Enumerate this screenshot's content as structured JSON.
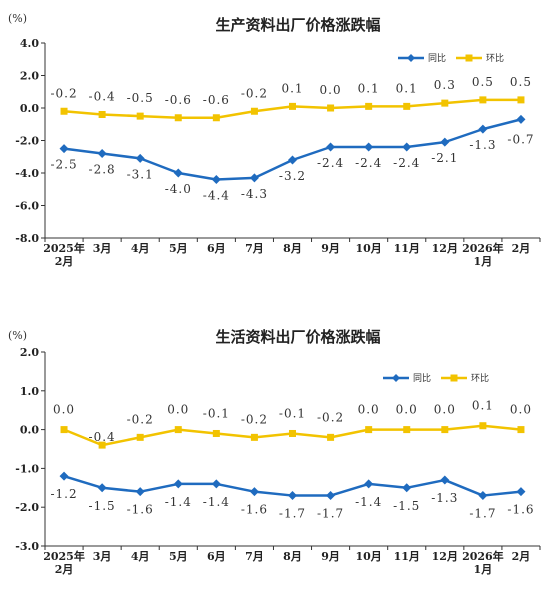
{
  "colors": {
    "yoy": "#1f6bbf",
    "mom": "#f2c300",
    "axis": "#333333"
  },
  "chart_data": [
    {
      "type": "line",
      "title": "生产资料出厂价格涨跌幅",
      "unit": "(%)",
      "legend_position": "top-right",
      "ylim": [
        -8.0,
        4.0
      ],
      "yticks": [
        "4.0",
        "2.0",
        "0.0",
        "-2.0",
        "-4.0",
        "-6.0",
        "-8.0"
      ],
      "ytick_values": [
        4,
        2,
        0,
        -2,
        -4,
        -6,
        -8
      ],
      "categories": [
        [
          "2025年",
          "2月"
        ],
        [
          "3月"
        ],
        [
          "4月"
        ],
        [
          "5月"
        ],
        [
          "6月"
        ],
        [
          "7月"
        ],
        [
          "8月"
        ],
        [
          "9月"
        ],
        [
          "10月"
        ],
        [
          "11月"
        ],
        [
          "12月"
        ],
        [
          "2026年",
          "1月"
        ],
        [
          "2月"
        ]
      ],
      "series": [
        {
          "name": "同比",
          "key": "yoy",
          "values": [
            -2.5,
            -2.8,
            -3.1,
            -4.0,
            -4.4,
            -4.3,
            -3.2,
            -2.4,
            -2.4,
            -2.4,
            -2.1,
            -1.3,
            -0.7
          ],
          "labels": [
            "-2.5",
            "-2.8",
            "-3.1",
            "-4.0",
            "-4.4",
            "-4.3",
            "-3.2",
            "-2.4",
            "-2.4",
            "-2.4",
            "-2.1",
            "-1.3",
            "-0.7"
          ]
        },
        {
          "name": "环比",
          "key": "mom",
          "values": [
            -0.2,
            -0.4,
            -0.5,
            -0.6,
            -0.6,
            -0.2,
            0.1,
            0.0,
            0.1,
            0.1,
            0.3,
            0.5,
            0.5
          ],
          "labels": [
            "-0.2",
            "-0.4",
            "-0.5",
            "-0.6",
            "-0.6",
            "-0.2",
            "0.1",
            "0.0",
            "0.1",
            "0.1",
            "0.3",
            "0.5",
            "0.5"
          ]
        }
      ]
    },
    {
      "type": "line",
      "title": "生活资料出厂价格涨跌幅",
      "unit": "(%)",
      "legend_position": "top-right",
      "ylim": [
        -3.0,
        2.0
      ],
      "yticks": [
        "2.0",
        "1.0",
        "0.0",
        "-1.0",
        "-2.0",
        "-3.0"
      ],
      "ytick_values": [
        2,
        1,
        0,
        -1,
        -2,
        -3
      ],
      "categories": [
        [
          "2025年",
          "2月"
        ],
        [
          "3月"
        ],
        [
          "4月"
        ],
        [
          "5月"
        ],
        [
          "6月"
        ],
        [
          "7月"
        ],
        [
          "8月"
        ],
        [
          "9月"
        ],
        [
          "10月"
        ],
        [
          "11月"
        ],
        [
          "12月"
        ],
        [
          "2026年",
          "1月"
        ],
        [
          "2月"
        ]
      ],
      "series": [
        {
          "name": "同比",
          "key": "yoy",
          "values": [
            -1.2,
            -1.5,
            -1.6,
            -1.4,
            -1.4,
            -1.6,
            -1.7,
            -1.7,
            -1.4,
            -1.5,
            -1.3,
            -1.7,
            -1.6
          ],
          "labels": [
            "-1.2",
            "-1.5",
            "-1.6",
            "-1.4",
            "-1.4",
            "-1.6",
            "-1.7",
            "-1.7",
            "-1.4",
            "-1.5",
            "-1.3",
            "-1.7",
            "-1.6"
          ]
        },
        {
          "name": "环比",
          "key": "mom",
          "values": [
            0.0,
            -0.4,
            -0.2,
            0.0,
            -0.1,
            -0.2,
            -0.1,
            -0.2,
            0.0,
            0.0,
            0.0,
            0.1,
            0.0
          ],
          "labels": [
            "0.0",
            "-0.4",
            "-0.2",
            "0.0",
            "-0.1",
            "-0.2",
            "-0.1",
            "-0.2",
            "0.0",
            "0.0",
            "0.0",
            "0.1",
            "0.0"
          ]
        }
      ]
    }
  ]
}
